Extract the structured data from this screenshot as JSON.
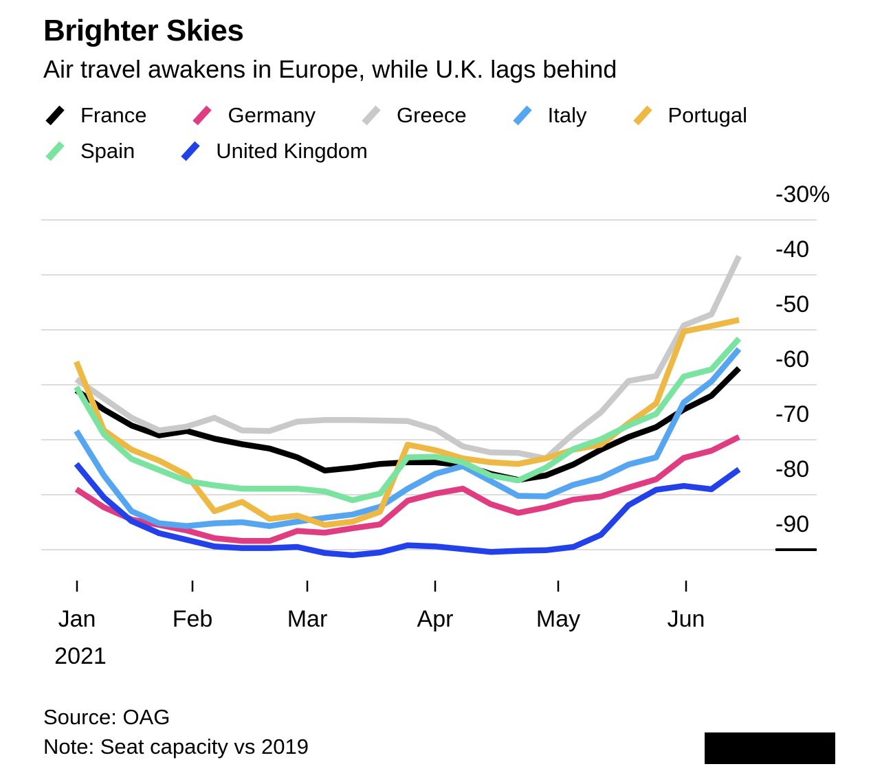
{
  "page": {
    "background": "#ffffff"
  },
  "chart_data": {
    "type": "line",
    "title": "Brighter Skies",
    "subtitle": "Air travel awakens in Europe, while U.K. lags behind",
    "unit": "%",
    "grid": "horizontal",
    "legend_position": "top",
    "x": [
      "Jan 1",
      "Jan 8",
      "Jan 15",
      "Jan 22",
      "Jan 29",
      "Feb 5",
      "Feb 12",
      "Feb 19",
      "Feb 26",
      "Mar 5",
      "Mar 12",
      "Mar 19",
      "Mar 26",
      "Apr 2",
      "Apr 9",
      "Apr 16",
      "Apr 23",
      "Apr 30",
      "May 7",
      "May 14",
      "May 21",
      "May 28",
      "Jun 4",
      "Jun 11",
      "Jun 18"
    ],
    "x_axis": {
      "month_labels": [
        "Jan",
        "Feb",
        "Mar",
        "Apr",
        "May",
        "Jun"
      ],
      "year_label": "2021"
    },
    "y_axis": {
      "tick_labels": [
        "-30%",
        "-40",
        "-50",
        "-60",
        "-70",
        "-80",
        "-90"
      ],
      "tick_values": [
        -30,
        -40,
        -50,
        -60,
        -70,
        -80,
        -90
      ],
      "ylim": [
        -93,
        -30
      ]
    },
    "series": [
      {
        "name": "France",
        "color": "#000000",
        "values": [
          -61,
          -64.5,
          -67.4,
          -69.2,
          -68.4,
          -69.8,
          -70.8,
          -71.6,
          -73.2,
          -75.6,
          -75.1,
          -74.4,
          -74.1,
          -74.1,
          -74.6,
          -76.2,
          -77.3,
          -76.5,
          -74.5,
          -71.8,
          -69.5,
          -67.7,
          -64.5,
          -62,
          -57
        ]
      },
      {
        "name": "Germany",
        "color": "#df3c82",
        "values": [
          -79,
          -82.3,
          -84.5,
          -85.5,
          -86.5,
          -87.9,
          -88.4,
          -88.4,
          -86.6,
          -86.9,
          -86.1,
          -85.4,
          -81.1,
          -79.8,
          -78.9,
          -81.7,
          -83.3,
          -82.3,
          -80.9,
          -80.3,
          -78.7,
          -77.2,
          -73.3,
          -72,
          -69.5
        ]
      },
      {
        "name": "Greece",
        "color": "#c9c9c9",
        "values": [
          -59,
          -62.5,
          -66,
          -68.3,
          -67.6,
          -66,
          -68.3,
          -68.4,
          -66.7,
          -66.4,
          -66.4,
          -66.5,
          -66.6,
          -68.1,
          -71.2,
          -72.3,
          -72.4,
          -73.4,
          -68.9,
          -65,
          -59.3,
          -58.4,
          -49.2,
          -47.2,
          -36.6
        ]
      },
      {
        "name": "Italy",
        "color": "#55a5f0",
        "values": [
          -68.4,
          -76.5,
          -83,
          -85.2,
          -85.7,
          -85.2,
          -85,
          -85.7,
          -84.9,
          -84.2,
          -83.6,
          -82.2,
          -78.9,
          -76.2,
          -74.8,
          -77.5,
          -80.2,
          -80.3,
          -78.2,
          -76.9,
          -74.5,
          -73.2,
          -63.2,
          -59.4,
          -53.5
        ]
      },
      {
        "name": "Portugal",
        "color": "#eeb844",
        "values": [
          -55.8,
          -68.3,
          -71.8,
          -73.8,
          -76.4,
          -83,
          -81.3,
          -84.4,
          -83.8,
          -85.5,
          -84.9,
          -83.1,
          -70.9,
          -71.9,
          -73.4,
          -74.1,
          -74.4,
          -73.4,
          -71.8,
          -70.9,
          -67,
          -63.4,
          -50.3,
          -49.3,
          -48.2
        ]
      },
      {
        "name": "Spain",
        "color": "#7ae3a0",
        "values": [
          -60.4,
          -69,
          -73.5,
          -75.5,
          -77.5,
          -78.3,
          -78.9,
          -78.9,
          -78.9,
          -79.4,
          -81,
          -79.8,
          -73.2,
          -73.1,
          -74.1,
          -76.5,
          -77.4,
          -75.1,
          -71.7,
          -69.9,
          -67.4,
          -65.3,
          -58.5,
          -57.2,
          -51.6
        ]
      },
      {
        "name": "United Kingdom",
        "color": "#2341e8",
        "values": [
          -74.4,
          -80.5,
          -84.8,
          -87,
          -88.2,
          -89.4,
          -89.7,
          -89.7,
          -89.5,
          -90.6,
          -91,
          -90.5,
          -89.2,
          -89.4,
          -89.9,
          -90.4,
          -90.2,
          -90.1,
          -89.5,
          -87.3,
          -81.9,
          -79.1,
          -78.4,
          -79,
          -75.4
        ]
      }
    ],
    "colors": {
      "gridline": "#dcdcdc",
      "axis_text": "#000000",
      "baseline_tick": "#000000"
    }
  },
  "footer": {
    "source": "Source: OAG",
    "note": "Note: Seat capacity vs 2019"
  },
  "logo": {
    "color": "#000000"
  }
}
